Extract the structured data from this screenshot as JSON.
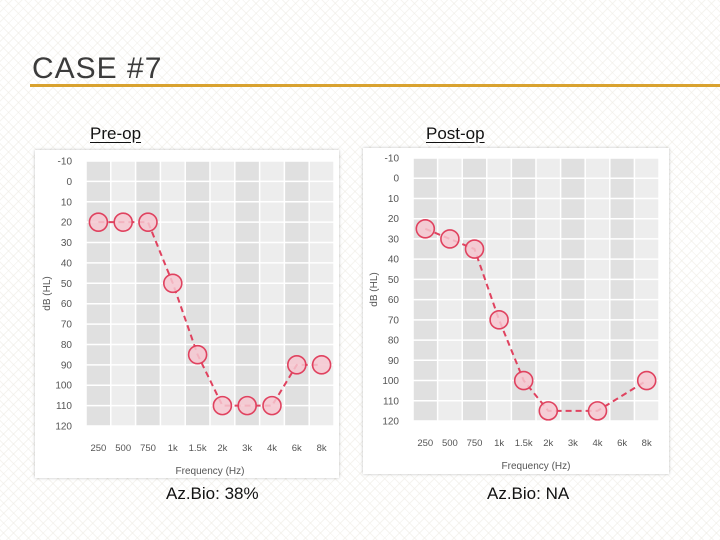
{
  "slide": {
    "title": "CASE #7",
    "pre_label": "Pre-op",
    "post_label": "Post-op",
    "pre_caption": "Az.Bio: 38%",
    "post_caption": "Az.Bio: NA"
  },
  "colors": {
    "accent_rule": "#d9a22f",
    "series": "#e0425f",
    "marker_fill": "#f6c7d0",
    "band_dark": "#e0e0e0",
    "band_light": "#ededed"
  },
  "chart_data": [
    {
      "type": "line",
      "name": "Pre-op audiogram",
      "xlabel": "Frequency (Hz)",
      "ylabel": "dB (HL)",
      "x_ticks": [
        "250",
        "500",
        "750",
        "1k",
        "1.5k",
        "2k",
        "3k",
        "4k",
        "6k",
        "8k"
      ],
      "y_ticks": [
        -10,
        0,
        10,
        20,
        30,
        40,
        50,
        60,
        70,
        80,
        90,
        100,
        110,
        120
      ],
      "ylim": [
        -10,
        120
      ],
      "y_inverted": true,
      "grid": true,
      "points": [
        {
          "x": "250",
          "y": 20
        },
        {
          "x": "500",
          "y": 20
        },
        {
          "x": "750",
          "y": 20
        },
        {
          "x": "1k",
          "y": 50
        },
        {
          "x": "1.5k",
          "y": 85
        },
        {
          "x": "2k",
          "y": 110
        },
        {
          "x": "3k",
          "y": 110
        },
        {
          "x": "4k",
          "y": 110
        },
        {
          "x": "6k",
          "y": 90
        },
        {
          "x": "8k",
          "y": 90
        }
      ]
    },
    {
      "type": "line",
      "name": "Post-op audiogram",
      "xlabel": "Frequency (Hz)",
      "ylabel": "dB (HL)",
      "x_ticks": [
        "250",
        "500",
        "750",
        "1k",
        "1.5k",
        "2k",
        "3k",
        "4k",
        "6k",
        "8k"
      ],
      "y_ticks": [
        -10,
        0,
        10,
        20,
        30,
        40,
        50,
        60,
        70,
        80,
        90,
        100,
        110,
        120
      ],
      "ylim": [
        -10,
        120
      ],
      "y_inverted": true,
      "grid": true,
      "points": [
        {
          "x": "250",
          "y": 25
        },
        {
          "x": "500",
          "y": 30
        },
        {
          "x": "750",
          "y": 35
        },
        {
          "x": "1k",
          "y": 70
        },
        {
          "x": "1.5k",
          "y": 100
        },
        {
          "x": "2k",
          "y": 115
        },
        {
          "x": "4k",
          "y": 115
        },
        {
          "x": "8k",
          "y": 100
        }
      ]
    }
  ]
}
